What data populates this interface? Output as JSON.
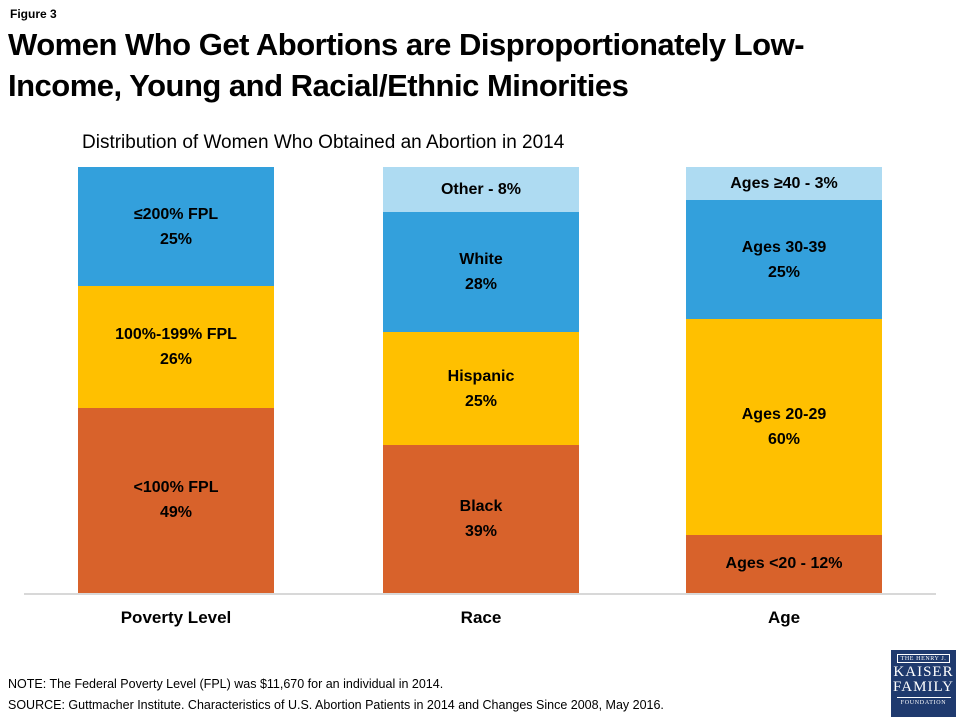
{
  "header": {
    "figure_label": "Figure 3",
    "title_lines": [
      "Women Who Get Abortions are Disproportionately Low-",
      "Income, Young and Racial/Ethnic Minorities"
    ]
  },
  "colors": {
    "orange": "#d8622b",
    "gold": "#ffc000",
    "blue": "#33a0dc",
    "light_blue": "#aedbf2",
    "baseline_gray": "#d8d8d8",
    "logo_navy": "#1f3a6e"
  },
  "chart_data": {
    "type": "bar",
    "stacked": true,
    "title": "Distribution of Women Who Obtained an Abortion in 2014",
    "ylim": [
      0,
      100
    ],
    "grid": false,
    "legend_position": "none (labels inside segments)",
    "categories": [
      "Poverty Level",
      "Race",
      "Age"
    ],
    "groups": [
      {
        "category": "Poverty Level",
        "segments": [
          {
            "label": "<100% FPL",
            "value": 49,
            "color": "orange",
            "text_lines": [
              "<100% FPL",
              "49%"
            ]
          },
          {
            "label": "100%-199% FPL",
            "value": 26,
            "color": "gold",
            "text_lines": [
              "100%-199% FPL",
              "26%"
            ]
          },
          {
            "label": "≤200% FPL",
            "value": 25,
            "color": "blue",
            "text_lines": [
              "≤200% FPL",
              "25%"
            ]
          }
        ]
      },
      {
        "category": "Race",
        "segments": [
          {
            "label": "Black",
            "value": 39,
            "color": "orange",
            "text_lines": [
              "Black",
              "39%"
            ]
          },
          {
            "label": "Hispanic",
            "value": 25,
            "color": "gold",
            "text_lines": [
              "Hispanic",
              "25%"
            ]
          },
          {
            "label": "White",
            "value": 28,
            "color": "blue",
            "text_lines": [
              "White",
              "28%"
            ]
          },
          {
            "label": "Other",
            "value": 8,
            "color": "light_blue",
            "text_lines": [
              "Other - 8%"
            ]
          }
        ]
      },
      {
        "category": "Age",
        "segments": [
          {
            "label": "Ages <20",
            "value": 12,
            "color": "orange",
            "text_lines": [
              "Ages <20 - 12%"
            ]
          },
          {
            "label": "Ages 20-29",
            "value": 60,
            "color": "gold",
            "text_lines": [
              "Ages 20-29",
              "60%"
            ]
          },
          {
            "label": "Ages 30-39",
            "value": 25,
            "color": "blue",
            "text_lines": [
              "Ages 30-39",
              "25%"
            ]
          },
          {
            "label": "Ages ≥40",
            "value": 3,
            "color": "light_blue",
            "text_lines": [
              "Ages ≥40 - 3%"
            ]
          }
        ]
      }
    ]
  },
  "notes": {
    "note": "NOTE: The Federal Poverty Level (FPL) was $11,670 for an individual in 2014.",
    "source": "SOURCE: Guttmacher Institute. Characteristics of U.S. Abortion Patients in 2014 and Changes Since 2008, May 2016."
  },
  "logo": {
    "line1": "THE HENRY J.",
    "line2": "KAISER",
    "line3": "FAMILY",
    "line4": "FOUNDATION"
  }
}
